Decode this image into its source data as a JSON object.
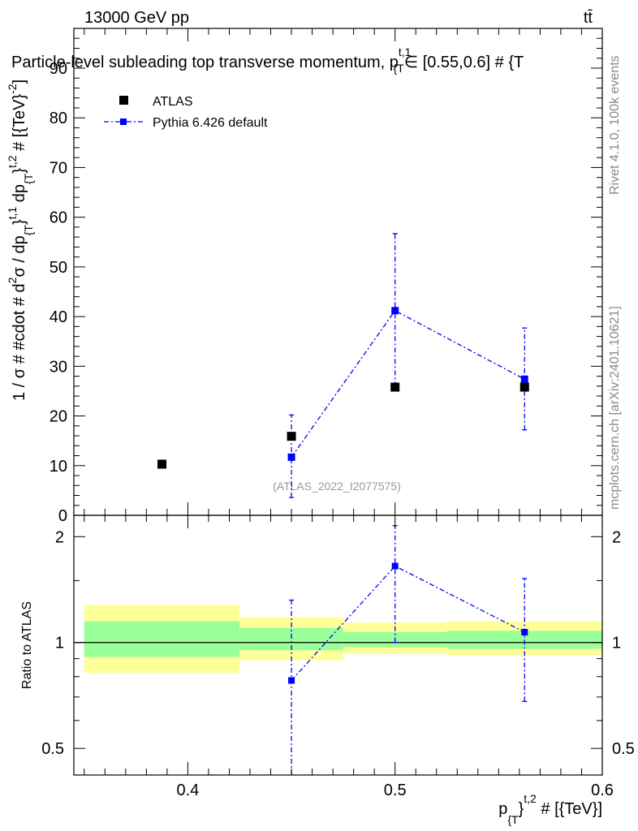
{
  "header": {
    "energy_label": "13000 GeV pp",
    "process_label": "tt̄"
  },
  "side_labels": {
    "rivet": "Rivet 4.1.0,  100k events",
    "mcplots": "mcplots.cern.ch [arXiv:2401.10621]"
  },
  "colors": {
    "atlas": "#000000",
    "pythia": "#0000ff",
    "band_stat": "#99ff99",
    "band_total": "#ffff99"
  },
  "chart_data": [
    {
      "type": "scatter",
      "title": "Particle-level subleading top transverse momentum, p}^{t,1}∈ [0.55,0.6] # {T",
      "title_parts": {
        "main": "Particle-level subleading top transverse momentum, p",
        "sup": "t,1",
        "sub": "{T",
        "tail": "∈ [0.55,0.6] # {T"
      },
      "ylabel": "1 / σ # #cdot # d²σ / dp_{T}^{t,1} dp_{T}^{t,2} # [{TeV}^{-2}]",
      "ylabel_parts": {
        "a": "1 / σ # #cdot # d",
        "b": "2",
        "c": "σ / dp",
        "d": "{T",
        "e": "}",
        "f": "t,1",
        "g": " dp",
        "h": "{T",
        "i": "}",
        "j": "t,2",
        "k": " # [{TeV}",
        "l": "-2",
        "m": "]"
      },
      "xlim": [
        0.345,
        0.6
      ],
      "ylim": [
        0,
        98
      ],
      "y_ticks": [
        10,
        20,
        30,
        40,
        50,
        60,
        70,
        80,
        90
      ],
      "y_tick_labels": [
        "10",
        "20",
        "30",
        "40",
        "50",
        "60",
        "70",
        "80",
        "90"
      ],
      "bottom_tick_label": "0",
      "legend": [
        "ATLAS",
        "Pythia 6.426 default"
      ],
      "legend_position": "top-left",
      "watermark": "(ATLAS_2022_I2077575)",
      "series": [
        {
          "name": "ATLAS",
          "x": [
            0.3875,
            0.45,
            0.5,
            0.5625
          ],
          "y": [
            10.3,
            15.9,
            25.8,
            25.8
          ]
        },
        {
          "name": "Pythia 6.426 default",
          "x": [
            0.45,
            0.5,
            0.5625
          ],
          "y": [
            11.7,
            41.2,
            27.4
          ],
          "y_err_low": [
            3.6,
            25.9,
            17.2
          ],
          "y_err_high": [
            20.2,
            56.7,
            37.7
          ]
        }
      ]
    },
    {
      "type": "scatter",
      "ylabel": "Ratio to ATLAS",
      "xlabel": "p_{T}^{t,2} # [{TeV}]",
      "xlabel_parts": {
        "a": "p",
        "b": "{T",
        "c": "}",
        "d": "t,2",
        "e": " # [{TeV}]"
      },
      "y_scale": "log",
      "ylim": [
        0.42,
        2.3
      ],
      "y_ticks": [
        0.5,
        1,
        2
      ],
      "y_tick_labels": [
        "0.5",
        "1",
        "2"
      ],
      "x_ticks": [
        0.4,
        0.5,
        0.6
      ],
      "x_tick_labels": [
        "0.4",
        "0.5",
        "0.6"
      ],
      "bands": [
        {
          "x0": 0.35,
          "x1": 0.425,
          "total": [
            0.82,
            1.28
          ],
          "stat": [
            0.91,
            1.15
          ]
        },
        {
          "x0": 0.425,
          "x1": 0.475,
          "total": [
            0.89,
            1.18
          ],
          "stat": [
            0.95,
            1.1
          ]
        },
        {
          "x0": 0.475,
          "x1": 0.525,
          "total": [
            0.93,
            1.14
          ],
          "stat": [
            0.97,
            1.07
          ]
        },
        {
          "x0": 0.525,
          "x1": 0.6,
          "total": [
            0.92,
            1.15
          ],
          "stat": [
            0.96,
            1.08
          ]
        }
      ],
      "series": [
        {
          "name": "Pythia 6.426 default",
          "x": [
            0.45,
            0.5,
            0.5625
          ],
          "y": [
            0.78,
            1.65,
            1.07
          ],
          "y_err_low": [
            0.35,
            1.0,
            0.68
          ],
          "y_err_high": [
            1.32,
            2.15,
            1.52
          ]
        }
      ]
    }
  ]
}
